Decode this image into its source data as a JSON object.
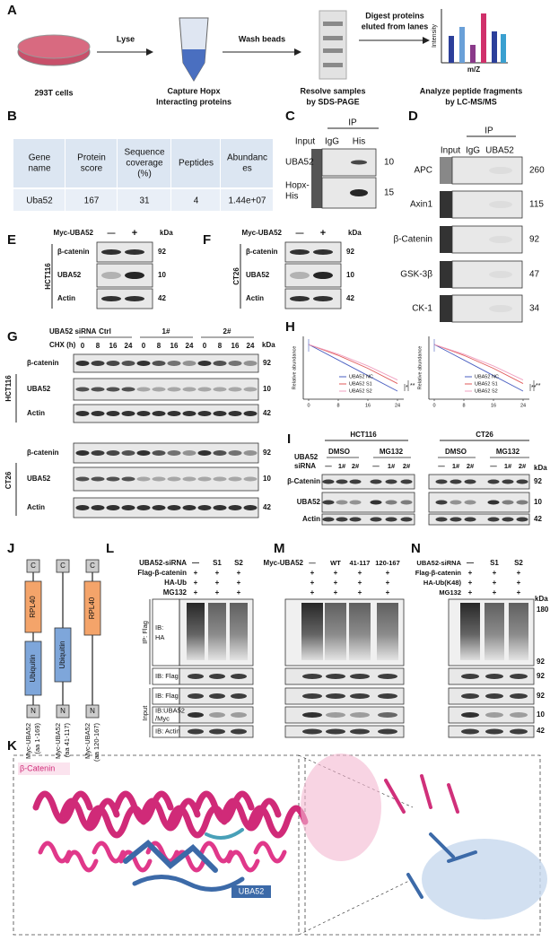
{
  "panel_labels": [
    "A",
    "B",
    "C",
    "D",
    "E",
    "F",
    "G",
    "H",
    "I",
    "J",
    "K",
    "L",
    "M",
    "N"
  ],
  "a": {
    "steps": [
      "Lyse",
      "Wash beads",
      "Digest proteins",
      "eluted from lanes"
    ],
    "captions": [
      "293T cells",
      "Capture Hopx",
      "Interacting proteins",
      "Resolve samples",
      "by SDS-PAGE",
      "Analyze peptide fragments",
      "by LC-MS/MS"
    ],
    "axis": [
      "Intensity",
      "m/Z"
    ]
  },
  "b": {
    "header": [
      [
        "Gene",
        "name"
      ],
      [
        "Protein",
        "score"
      ],
      [
        "Sequence",
        "coverage",
        "(%)"
      ],
      [
        "Peptides"
      ],
      [
        "Abundanc",
        "es"
      ]
    ],
    "row": [
      "Uba52",
      "167",
      "31",
      "4",
      "1.44e+07"
    ]
  },
  "c": {
    "ip": "IP",
    "lanes": [
      "Input",
      "IgG",
      "His"
    ],
    "rows": [
      [
        "UBA52"
      ],
      [
        "Hopx-",
        "His"
      ]
    ],
    "kda": [
      "10",
      "15"
    ]
  },
  "d": {
    "ip": "IP",
    "lanes": [
      "Input",
      "IgG",
      "UBA52"
    ],
    "rows": [
      "APC",
      "Axin1",
      "β-Catenin",
      "GSK-3β",
      "CK-1"
    ],
    "kda": [
      "260",
      "115",
      "92",
      "47",
      "34"
    ]
  },
  "e": {
    "treatment": "Myc-UBA52",
    "lanes": [
      "—",
      "+"
    ],
    "kda_title": "kDa",
    "cell": "HCT116",
    "rows": [
      "β-catenin",
      "UBA52",
      "Actin"
    ],
    "kda": [
      "92",
      "10",
      "42"
    ]
  },
  "f": {
    "treatment": "Myc-UBA52",
    "lanes": [
      "—",
      "+"
    ],
    "kda_title": "kDa",
    "cell": "CT26",
    "rows": [
      "β-catenin",
      "UBA52",
      "Actin"
    ],
    "kda": [
      "92",
      "10",
      "42"
    ]
  },
  "g": {
    "sirna": "UBA52 siRNA",
    "groups": [
      "Ctrl",
      "1#",
      "2#"
    ],
    "chx": "CHX (h)",
    "times": [
      "0",
      "8",
      "16",
      "24"
    ],
    "kda_title": "kDa",
    "blocks": [
      {
        "cell": "HCT116",
        "rows": [
          "β-catenin",
          "UBA52",
          "Actin"
        ]
      },
      {
        "cell": "CT26",
        "rows": [
          "β-catenin",
          "UBA52",
          "Actin"
        ]
      }
    ],
    "kda": [
      "92",
      "10",
      "42"
    ]
  },
  "h": {
    "charts": [
      {
        "ylabel": "Relative abundance",
        "xticks": [
          "0",
          "8",
          "16",
          "24"
        ],
        "legend": [
          "UBA52 NC",
          "UBA52 S1",
          "UBA52 S2"
        ],
        "stars": [
          "*",
          "**"
        ]
      },
      {
        "ylabel": "Relative abundance",
        "xticks": [
          "0",
          "8",
          "16",
          "24"
        ],
        "legend": [
          "UBA52 NC",
          "UBA52 S1",
          "UBA52 S2"
        ],
        "stars": [
          "**",
          "**"
        ]
      }
    ]
  },
  "i": {
    "cells": [
      "HCT116",
      "CT26"
    ],
    "sirna": [
      "UBA52",
      "siRNA"
    ],
    "treatments": [
      "DMSO",
      "MG132",
      "DMSO",
      "MG132"
    ],
    "lanes": [
      "—",
      "1#",
      "2#"
    ],
    "kda_title": "kDa",
    "rows": [
      "β-Catenin",
      "UBA52",
      "Actin"
    ],
    "kda": [
      "92",
      "10",
      "42"
    ]
  },
  "j": {
    "constructs": [
      {
        "domains": [
          "C",
          "RPL40",
          "Ubiquitin",
          "N"
        ],
        "label": [
          "Myc-UBA52",
          "(aa 1-169)"
        ]
      },
      {
        "domains": [
          "C",
          "Ubiquitin",
          "N"
        ],
        "label": [
          "Myc-UBA52",
          "(aa 41-117)"
        ]
      },
      {
        "domains": [
          "C",
          "RPL40",
          "N"
        ],
        "label": [
          "Myc-UBA52",
          "(aa 120-167)"
        ]
      }
    ]
  },
  "l": {
    "conditions": [
      {
        "label": "UBA52-siRNA",
        "marks": [
          "—",
          "S1",
          "S2"
        ]
      },
      {
        "label": "Flag-β-catenin",
        "marks": [
          "+",
          "+",
          "+"
        ]
      },
      {
        "label": "HA-Ub",
        "marks": [
          "+",
          "+",
          "+"
        ]
      },
      {
        "label": "MG132",
        "marks": [
          "+",
          "+",
          "+"
        ]
      }
    ],
    "ip": "IP: Flag",
    "input": "Input",
    "blots": [
      [
        "IB:",
        "HA"
      ],
      [
        "IB: Flag"
      ],
      [
        "IB: Flag"
      ],
      [
        "IB:UBA52",
        "/Myc"
      ],
      [
        "IB: Actin"
      ]
    ]
  },
  "m": {
    "conditions": [
      {
        "label": "Myc-UBA52",
        "marks": [
          "—",
          "WT",
          "41-117",
          "120-167"
        ]
      }
    ],
    "plus_rows": [
      [
        "+",
        "+",
        "+",
        "+"
      ],
      [
        "+",
        "+",
        "+",
        "+"
      ],
      [
        "+",
        "+",
        "+",
        "+"
      ]
    ]
  },
  "n": {
    "conditions": [
      {
        "label": "UBA52-siRNA",
        "marks": [
          "—",
          "S1",
          "S2"
        ]
      },
      {
        "label": "Flag-β-catenin",
        "marks": [
          "+",
          "+",
          "+"
        ]
      },
      {
        "label": "HA-Ub(K48)",
        "marks": [
          "+",
          "+",
          "+"
        ]
      },
      {
        "label": "MG132",
        "marks": [
          "+",
          "+",
          "+"
        ]
      }
    ],
    "kda_title": "kDa",
    "kda": [
      "180",
      "92",
      "92",
      "92",
      "10",
      "42"
    ]
  },
  "k": {
    "labels": [
      "β-Catenin",
      "UBA52"
    ]
  }
}
